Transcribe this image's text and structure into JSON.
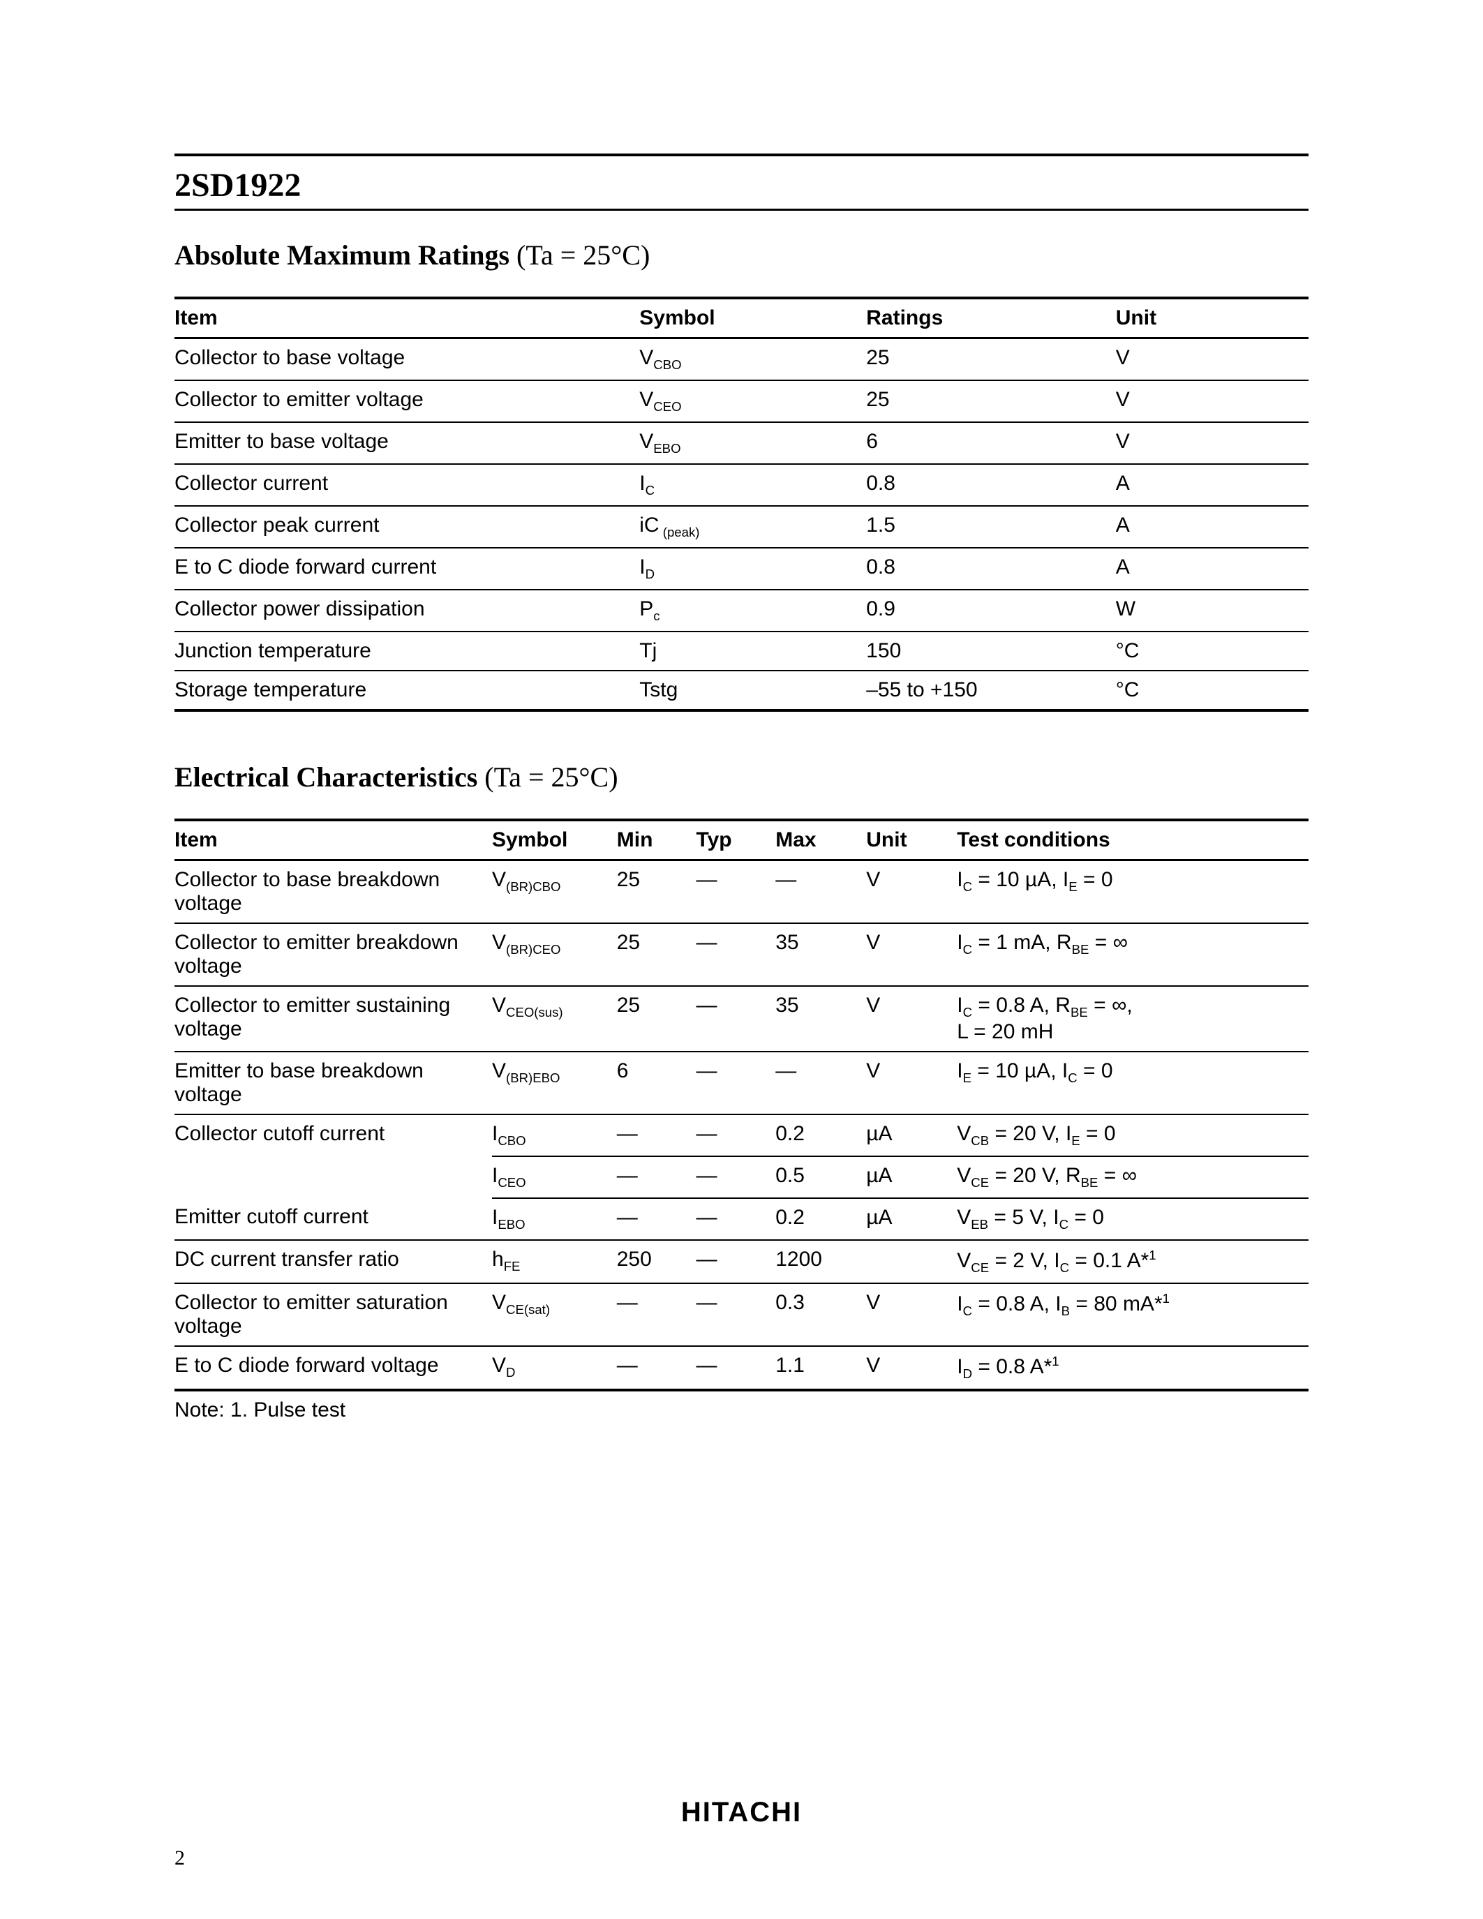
{
  "partNumber": "2SD1922",
  "section1": {
    "titleBold": "Absolute Maximum Ratings",
    "titleCond": " (Ta = 25°C)",
    "columns": [
      "Item",
      "Symbol",
      "Ratings",
      "Unit"
    ],
    "rows": [
      {
        "item": "Collector to base voltage",
        "symMain": "V",
        "symSub": "CBO",
        "ratings": "25",
        "unit": "V"
      },
      {
        "item": "Collector to emitter voltage",
        "symMain": "V",
        "symSub": "CEO",
        "ratings": "25",
        "unit": "V"
      },
      {
        "item": "Emitter to base voltage",
        "symMain": "V",
        "symSub": "EBO",
        "ratings": "6",
        "unit": "V"
      },
      {
        "item": "Collector current",
        "symMain": "I",
        "symSub": "C",
        "ratings": "0.8",
        "unit": "A"
      },
      {
        "item": "Collector peak current",
        "symMain": "iC",
        "symSub": " (peak)",
        "ratings": "1.5",
        "unit": "A"
      },
      {
        "item": "E to C diode forward current",
        "symMain": "I",
        "symSub": "D",
        "ratings": "0.8",
        "unit": "A"
      },
      {
        "item": "Collector power dissipation",
        "symMain": "P",
        "symSub": "c",
        "ratings": "0.9",
        "unit": "W"
      },
      {
        "item": "Junction temperature",
        "symMain": "Tj",
        "symSub": "",
        "ratings": "150",
        "unit": "°C"
      },
      {
        "item": "Storage temperature",
        "symMain": "Tstg",
        "symSub": "",
        "ratings": "–55 to +150",
        "unit": "°C"
      }
    ]
  },
  "section2": {
    "titleBold": "Electrical Characteristics",
    "titleCond": " (Ta = 25°C)",
    "columns": [
      "Item",
      "Symbol",
      "Min",
      "Typ",
      "Max",
      "Unit",
      "Test conditions"
    ],
    "rows": [
      {
        "item": "Collector to base breakdown voltage",
        "symMain": "V",
        "symSub": "(BR)CBO",
        "min": "25",
        "typ": "—",
        "max": "—",
        "unit": "V",
        "tc": [
          {
            "t": "I",
            "s": "C"
          },
          {
            "t": " = 10 µA, "
          },
          {
            "t": "I",
            "s": "E"
          },
          {
            "t": " = 0"
          }
        ]
      },
      {
        "item": "Collector to emitter breakdown voltage",
        "symMain": "V",
        "symSub": "(BR)CEO",
        "min": "25",
        "typ": "—",
        "max": "35",
        "unit": "V",
        "tc": [
          {
            "t": "I",
            "s": "C"
          },
          {
            "t": " = 1 mA, "
          },
          {
            "t": "R",
            "s": "BE"
          },
          {
            "t": " = ∞"
          }
        ]
      },
      {
        "item": "Collector to emitter sustaining voltage",
        "symMain": "V",
        "symSub": "CEO(sus)",
        "min": "25",
        "typ": "—",
        "max": "35",
        "unit": "V",
        "tc": [
          {
            "t": "I",
            "s": "C"
          },
          {
            "t": " = 0.8 A, "
          },
          {
            "t": "R",
            "s": "BE"
          },
          {
            "t": " = ∞,"
          },
          {
            "br": true
          },
          {
            "t": "L = 20 mH"
          }
        ]
      },
      {
        "item": "Emitter to base breakdown voltage",
        "symMain": "V",
        "symSub": "(BR)EBO",
        "min": "6",
        "typ": "—",
        "max": "—",
        "unit": "V",
        "tc": [
          {
            "t": "I",
            "s": "E"
          },
          {
            "t": " = 10 µA, "
          },
          {
            "t": "I",
            "s": "C"
          },
          {
            "t": " = 0"
          }
        ]
      },
      {
        "item": "Collector cutoff current",
        "symMain": "I",
        "symSub": "CBO",
        "min": "—",
        "typ": "—",
        "max": "0.2",
        "unit": "µA",
        "tc": [
          {
            "t": "V",
            "s": "CB"
          },
          {
            "t": " = 20 V, "
          },
          {
            "t": "I",
            "s": "E"
          },
          {
            "t": " = 0"
          }
        ]
      },
      {
        "item": "",
        "continuation": true,
        "symMain": "I",
        "symSub": "CEO",
        "min": "—",
        "typ": "—",
        "max": "0.5",
        "unit": "µA",
        "tc": [
          {
            "t": "V",
            "s": "CE"
          },
          {
            "t": " = 20 V, "
          },
          {
            "t": "R",
            "s": "BE"
          },
          {
            "t": " = ∞"
          }
        ]
      },
      {
        "item": "Emitter cutoff current",
        "symMain": "I",
        "symSub": "EBO",
        "min": "—",
        "typ": "—",
        "max": "0.2",
        "unit": "µA",
        "tc": [
          {
            "t": "V",
            "s": "EB"
          },
          {
            "t": " = 5 V, "
          },
          {
            "t": "I",
            "s": "C"
          },
          {
            "t": " = 0"
          }
        ]
      },
      {
        "item": "DC current transfer ratio",
        "symMain": "h",
        "symSub": "FE",
        "min": "250",
        "typ": "—",
        "max": "1200",
        "unit": "",
        "tc": [
          {
            "t": "V",
            "s": "CE"
          },
          {
            "t": " = 2 V, "
          },
          {
            "t": "I",
            "s": "C"
          },
          {
            "t": " = 0.1 A*",
            "sup": "1"
          }
        ]
      },
      {
        "item": "Collector to emitter saturation voltage",
        "symMain": "V",
        "symSub": "CE(sat)",
        "min": "—",
        "typ": "—",
        "max": "0.3",
        "unit": "V",
        "tc": [
          {
            "t": "I",
            "s": "C"
          },
          {
            "t": " = 0.8 A, "
          },
          {
            "t": "I",
            "s": "B"
          },
          {
            "t": " = 80 mA*",
            "sup": "1"
          }
        ]
      },
      {
        "item": "E to C diode forward voltage",
        "symMain": "V",
        "symSub": "D",
        "min": "—",
        "typ": "—",
        "max": "1.1",
        "unit": "V",
        "tc": [
          {
            "t": "I",
            "s": "D"
          },
          {
            "t": " = 0.8 A*",
            "sup": "1"
          }
        ]
      }
    ],
    "note": "Note:   1.  Pulse test"
  },
  "footerBrand": "HITACHI",
  "pageNumber": "2"
}
